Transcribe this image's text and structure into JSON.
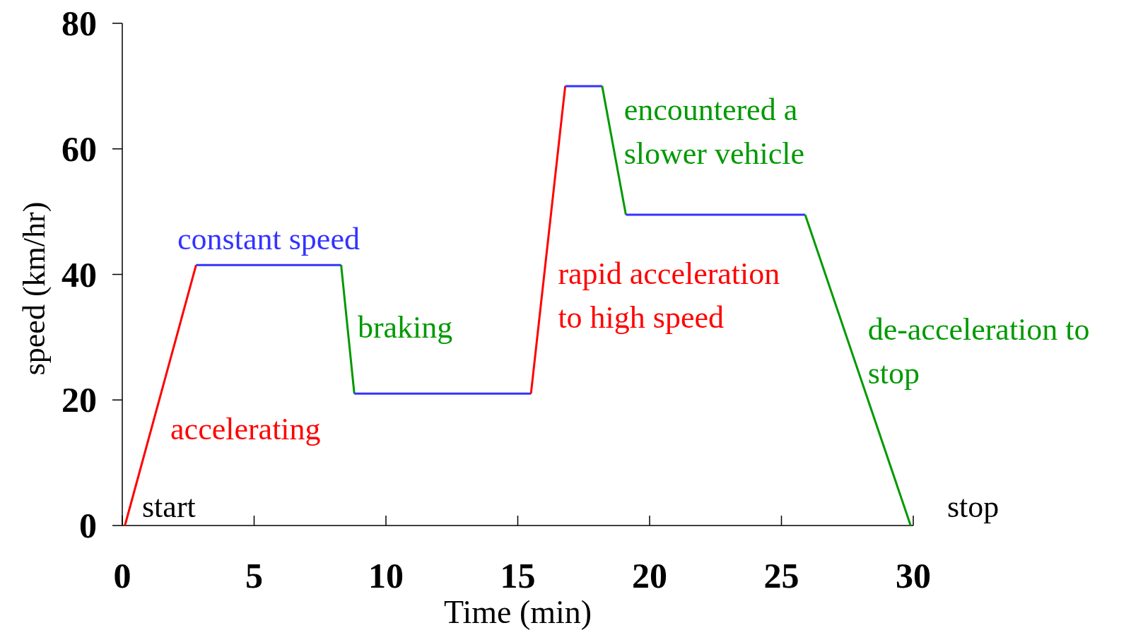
{
  "chart_data": {
    "type": "line",
    "xlabel": "Time (min)",
    "ylabel": "speed (km/hr)",
    "xlim": [
      0,
      30
    ],
    "xticks": [
      0,
      5,
      10,
      15,
      20,
      25,
      30
    ],
    "ylim": [
      0,
      80
    ],
    "yticks": [
      0,
      20,
      40,
      60,
      80
    ],
    "grid": false,
    "marker": "none",
    "series": [
      {
        "name": "accelerating",
        "color": "#ff0000",
        "x": [
          0.1,
          2.8
        ],
        "values": [
          0,
          41.5
        ]
      },
      {
        "name": "constant speed",
        "color": "#3333ff",
        "x": [
          2.8,
          8.3
        ],
        "values": [
          41.5,
          41.5
        ]
      },
      {
        "name": "braking",
        "color": "#009900",
        "x": [
          8.3,
          8.8
        ],
        "values": [
          41.5,
          21
        ]
      },
      {
        "color": "#3333ff",
        "x": [
          8.8,
          15.5
        ],
        "values": [
          21,
          21
        ]
      },
      {
        "name": "rapid acceleration\nto high speed",
        "color": "#ff0000",
        "x": [
          15.5,
          16.8
        ],
        "values": [
          21,
          70
        ]
      },
      {
        "color": "#3333ff",
        "x": [
          16.8,
          18.2
        ],
        "values": [
          70,
          70
        ]
      },
      {
        "name": "encountered a\nslower vehicle",
        "color": "#009900",
        "x": [
          18.2,
          19.1
        ],
        "values": [
          70,
          49.5
        ]
      },
      {
        "color": "#3333ff",
        "x": [
          19.1,
          25.9
        ],
        "values": [
          49.5,
          49.5
        ]
      },
      {
        "name": "de-acceleration to\nstop",
        "color": "#009900",
        "x": [
          25.9,
          29.9
        ],
        "values": [
          49.5,
          0
        ]
      }
    ],
    "annotations": [
      "start",
      "stop"
    ]
  }
}
